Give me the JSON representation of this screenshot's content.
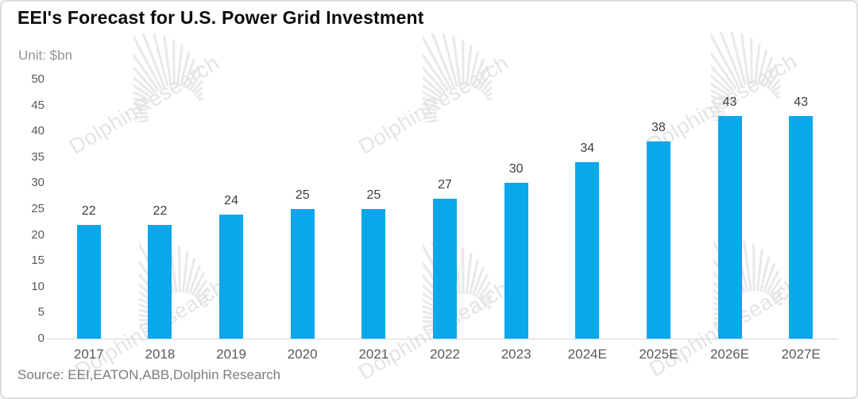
{
  "card": {
    "title": "EEI's Forecast for U.S. Power Grid Investment",
    "unit_label": "Unit: $bn",
    "source": "Source: EEI,EATON,ABB,Dolphin Research"
  },
  "watermark": {
    "text": "DolphinResearch",
    "color": "#e4e4e4"
  },
  "chart_data": {
    "type": "bar",
    "title": "EEI's Forecast for U.S. Power Grid Investment",
    "unit": "$bn",
    "categories": [
      "2017",
      "2018",
      "2019",
      "2020",
      "2021",
      "2022",
      "2023",
      "2024E",
      "2025E",
      "2026E",
      "2027E"
    ],
    "values": [
      22,
      22,
      24,
      25,
      25,
      27,
      30,
      34,
      38,
      43,
      43
    ],
    "data_labels": [
      22,
      22,
      24,
      25,
      25,
      27,
      30,
      34,
      38,
      43,
      43
    ],
    "bar_color": "#0aa7ea",
    "ylim": [
      0,
      50
    ],
    "y_ticks": [
      0,
      5,
      10,
      15,
      20,
      25,
      30,
      35,
      40,
      45,
      50
    ],
    "grid": false,
    "legend": false,
    "xlabel": "",
    "ylabel": "",
    "source": "Source: EEI,EATON,ABB,Dolphin Research"
  }
}
